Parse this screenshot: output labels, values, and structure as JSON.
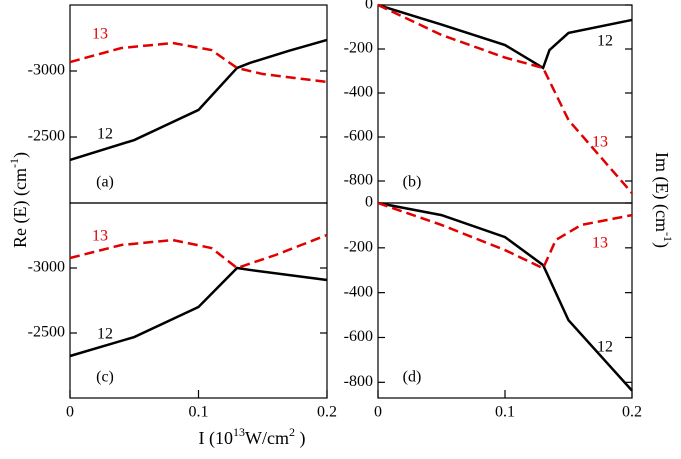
{
  "labels": {
    "y_left": [
      "Re  (E)  (cm",
      "-1",
      ")"
    ],
    "y_right": [
      "Im (E) (cm",
      "-1",
      ")"
    ],
    "x": [
      "I (10",
      "13",
      "W/cm",
      "2",
      "  )"
    ]
  },
  "chart_data": [
    {
      "type": "line",
      "panel_label": "(a)",
      "xlim": [
        0,
        0.2
      ],
      "ylim": [
        -2000,
        -3500
      ],
      "yticks": [
        -3000,
        -2500
      ],
      "series": [
        {
          "name": "12",
          "color": "#000000",
          "style": "solid",
          "x": [
            0,
            0.05,
            0.1,
            0.13,
            0.14,
            0.17,
            0.2
          ],
          "values": [
            -2326,
            -2477,
            -2705,
            -3023,
            -3061,
            -3152,
            -3235
          ]
        },
        {
          "name": "13",
          "color": "#e00000",
          "style": "dashed",
          "x": [
            0,
            0.04,
            0.08,
            0.11,
            0.13,
            0.15,
            0.2
          ],
          "values": [
            -3068,
            -3174,
            -3212,
            -3159,
            -3023,
            -2977,
            -2917
          ]
        }
      ]
    },
    {
      "type": "line",
      "panel_label": "(b)",
      "xlim": [
        0,
        0.2
      ],
      "ylim": [
        -900,
        0
      ],
      "yticks": [
        0,
        -200,
        -400,
        -600,
        -800
      ],
      "series": [
        {
          "name": "12",
          "color": "#000000",
          "style": "solid",
          "x": [
            0,
            0.05,
            0.1,
            0.13,
            0.135,
            0.15,
            0.2
          ],
          "values": [
            0,
            -89,
            -182,
            -286,
            -205,
            -127,
            -68
          ]
        },
        {
          "name": "13",
          "color": "#e00000",
          "style": "dashed",
          "x": [
            0,
            0.05,
            0.1,
            0.13,
            0.15,
            0.2
          ],
          "values": [
            0,
            -136,
            -239,
            -286,
            -523,
            -855
          ]
        }
      ]
    },
    {
      "type": "line",
      "panel_label": "(c)",
      "xlim": [
        0,
        0.2
      ],
      "ylim": [
        -2000,
        -3500
      ],
      "yticks": [
        -3000,
        -2500
      ],
      "xticks": [
        0,
        0.1,
        0.2
      ],
      "series": [
        {
          "name": "12",
          "color": "#000000",
          "style": "solid",
          "x": [
            0,
            0.05,
            0.1,
            0.13,
            0.14,
            0.2
          ],
          "values": [
            -2323,
            -2469,
            -2700,
            -3000,
            -2985,
            -2908
          ]
        },
        {
          "name": "13",
          "color": "#e00000",
          "style": "dashed",
          "x": [
            0,
            0.04,
            0.08,
            0.11,
            0.13,
            0.16,
            0.2
          ],
          "values": [
            -3077,
            -3177,
            -3215,
            -3154,
            -3000,
            -3100,
            -3254
          ]
        }
      ]
    },
    {
      "type": "line",
      "panel_label": "(d)",
      "xlim": [
        0,
        0.2
      ],
      "ylim": [
        -870,
        0
      ],
      "yticks": [
        0,
        -200,
        -400,
        -600,
        -800
      ],
      "xticks": [
        0,
        0.1,
        0.2
      ],
      "series": [
        {
          "name": "12",
          "color": "#000000",
          "style": "solid",
          "x": [
            0,
            0.05,
            0.1,
            0.13,
            0.15,
            0.2
          ],
          "values": [
            0,
            -54,
            -152,
            -277,
            -523,
            -837
          ]
        },
        {
          "name": "13",
          "color": "#e00000",
          "style": "dashed",
          "x": [
            0,
            0.05,
            0.1,
            0.13,
            0.14,
            0.16,
            0.2
          ],
          "values": [
            0,
            -98,
            -210,
            -291,
            -165,
            -98,
            -54
          ]
        }
      ]
    }
  ]
}
